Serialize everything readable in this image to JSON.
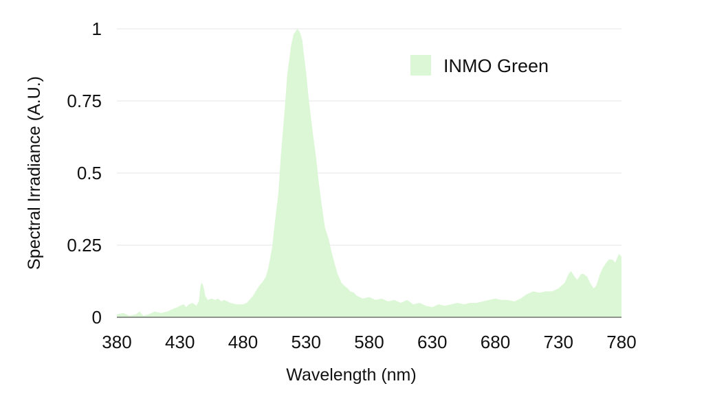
{
  "chart_data": {
    "type": "area",
    "title": "",
    "xlabel": "Wavelength (nm)",
    "ylabel": "Spectral Irradiance (A.U.)",
    "xlim": [
      380,
      780
    ],
    "ylim": [
      0,
      1
    ],
    "x_ticks": [
      "380",
      "430",
      "480",
      "530",
      "580",
      "630",
      "680",
      "730",
      "780"
    ],
    "y_ticks": [
      "0",
      "0.25",
      "0.5",
      "0.75",
      "1"
    ],
    "grid": "horizontal",
    "legend_position": "top-right",
    "series": [
      {
        "name": "INMO Green",
        "color": "#dcf7d6",
        "x": [
          380,
          385,
          390,
          395,
          398,
          401,
          405,
          410,
          415,
          420,
          425,
          428,
          430,
          433,
          435,
          437,
          440,
          443,
          445,
          446,
          447,
          448,
          449,
          450,
          452,
          455,
          458,
          460,
          463,
          465,
          470,
          475,
          480,
          483,
          485,
          488,
          490,
          493,
          495,
          498,
          500,
          503,
          505,
          508,
          510,
          513,
          515,
          518,
          520,
          523,
          525,
          527,
          528,
          530,
          532,
          535,
          538,
          540,
          543,
          545,
          548,
          550,
          553,
          555,
          558,
          560,
          563,
          565,
          568,
          570,
          575,
          580,
          585,
          590,
          595,
          600,
          605,
          610,
          615,
          620,
          625,
          630,
          635,
          640,
          645,
          650,
          655,
          660,
          665,
          670,
          675,
          680,
          685,
          690,
          695,
          700,
          705,
          710,
          715,
          720,
          725,
          730,
          735,
          738,
          740,
          743,
          745,
          748,
          750,
          753,
          755,
          758,
          760,
          763,
          765,
          768,
          770,
          773,
          775,
          778,
          780
        ],
        "values": [
          0.01,
          0.015,
          0.005,
          0.01,
          0.02,
          0.005,
          0.01,
          0.02,
          0.015,
          0.02,
          0.03,
          0.035,
          0.04,
          0.045,
          0.035,
          0.045,
          0.05,
          0.04,
          0.055,
          0.1,
          0.12,
          0.115,
          0.1,
          0.075,
          0.06,
          0.065,
          0.06,
          0.065,
          0.055,
          0.06,
          0.05,
          0.045,
          0.045,
          0.05,
          0.06,
          0.075,
          0.09,
          0.11,
          0.12,
          0.14,
          0.17,
          0.24,
          0.32,
          0.43,
          0.56,
          0.72,
          0.84,
          0.94,
          0.98,
          1.0,
          0.99,
          0.96,
          0.92,
          0.85,
          0.76,
          0.65,
          0.55,
          0.47,
          0.37,
          0.31,
          0.27,
          0.23,
          0.18,
          0.15,
          0.12,
          0.11,
          0.1,
          0.09,
          0.085,
          0.075,
          0.065,
          0.07,
          0.06,
          0.065,
          0.055,
          0.06,
          0.05,
          0.06,
          0.045,
          0.05,
          0.04,
          0.035,
          0.045,
          0.04,
          0.045,
          0.05,
          0.045,
          0.05,
          0.05,
          0.055,
          0.06,
          0.065,
          0.06,
          0.06,
          0.055,
          0.065,
          0.08,
          0.09,
          0.085,
          0.09,
          0.09,
          0.1,
          0.12,
          0.15,
          0.16,
          0.14,
          0.13,
          0.15,
          0.15,
          0.14,
          0.12,
          0.1,
          0.11,
          0.15,
          0.17,
          0.19,
          0.2,
          0.2,
          0.19,
          0.22,
          0.21
        ]
      }
    ]
  }
}
